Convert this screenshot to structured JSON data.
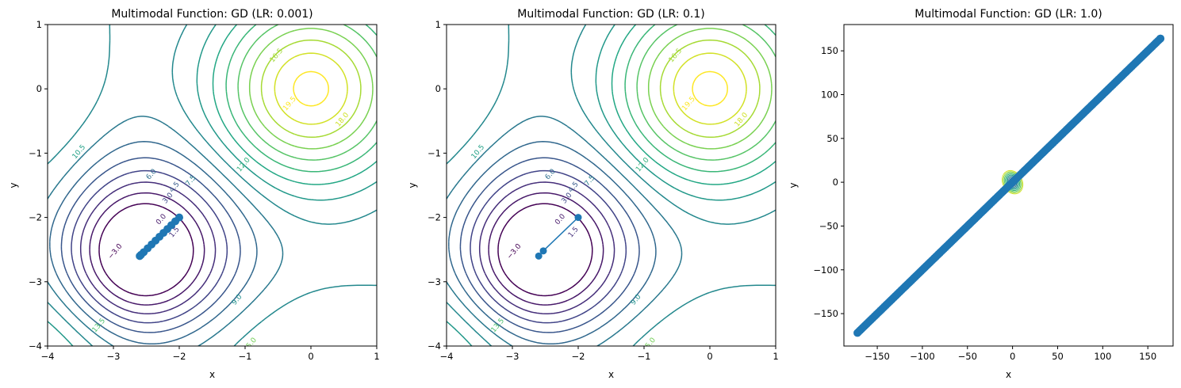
{
  "chart_data": [
    {
      "type": "contour",
      "title": "Multimodal Function: GD (LR: 0.001)",
      "xlabel": "x",
      "ylabel": "y",
      "xlim": [
        -4,
        1
      ],
      "ylim": [
        -4,
        1
      ],
      "xticks": [
        "−4",
        "−3",
        "−2",
        "−1",
        "0",
        "1"
      ],
      "yticks": [
        "−4",
        "−3",
        "−2",
        "−1",
        "0",
        "1"
      ],
      "contour_labels": [
        "−3.0",
        "0.0",
        "1.5",
        "3.0",
        "4.5",
        "6.0",
        "7.5",
        "9.0",
        "10.5",
        "12.0",
        "13.5",
        "15.0",
        "16.5",
        "18.0",
        "19.5"
      ],
      "path": {
        "x": [
          -2.0,
          -2.06,
          -2.12,
          -2.18,
          -2.24,
          -2.3,
          -2.36,
          -2.42,
          -2.48,
          -2.54,
          -2.58,
          -2.6
        ],
        "y": [
          -2.0,
          -2.06,
          -2.12,
          -2.18,
          -2.24,
          -2.3,
          -2.36,
          -2.42,
          -2.48,
          -2.54,
          -2.58,
          -2.6
        ]
      }
    },
    {
      "type": "contour",
      "title": "Multimodal Function: GD (LR: 0.1)",
      "xlabel": "x",
      "ylabel": "y",
      "xlim": [
        -4,
        1
      ],
      "ylim": [
        -4,
        1
      ],
      "xticks": [
        "−4",
        "−3",
        "−2",
        "−1",
        "0",
        "1"
      ],
      "yticks": [
        "−4",
        "−3",
        "−2",
        "−1",
        "0",
        "1"
      ],
      "contour_labels": [
        "−3.0",
        "0.0",
        "1.5",
        "3.0",
        "4.5",
        "6.0",
        "7.5",
        "9.0",
        "10.5",
        "12.0",
        "13.5",
        "15.0",
        "16.5",
        "18.0",
        "19.5"
      ],
      "path": {
        "x": [
          -2.0,
          -2.53,
          -2.6
        ],
        "y": [
          -2.0,
          -2.52,
          -2.6
        ]
      }
    },
    {
      "type": "scatter",
      "title": "Multimodal Function: GD (LR: 1.0)",
      "xlabel": "x",
      "ylabel": "y",
      "xlim": [
        -187,
        178
      ],
      "ylim": [
        -187,
        180
      ],
      "xticks": [
        "−150",
        "−100",
        "−50",
        "0",
        "50",
        "100",
        "150"
      ],
      "yticks": [
        "−150",
        "−100",
        "−50",
        "0",
        "50",
        "100",
        "150"
      ],
      "path_range": [
        -172,
        164
      ]
    }
  ]
}
